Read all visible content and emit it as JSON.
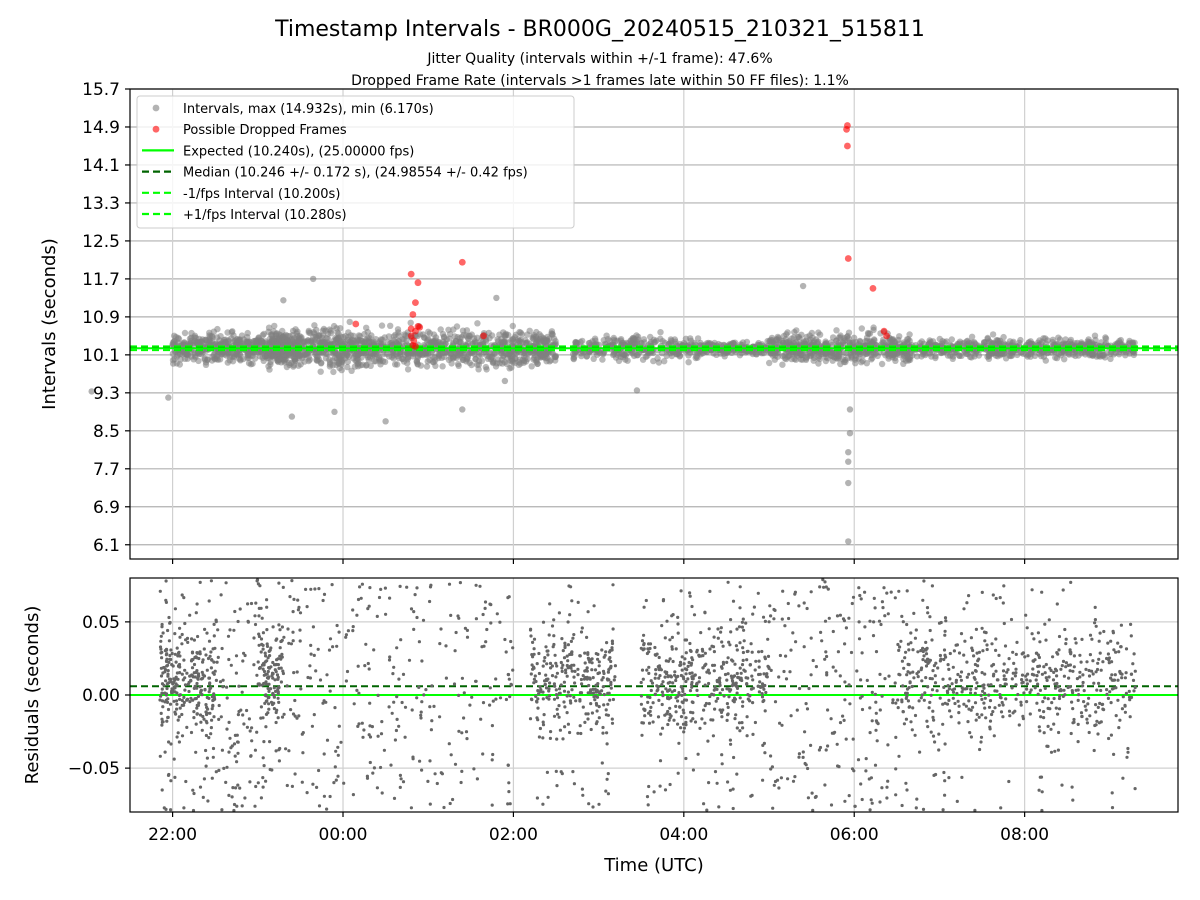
{
  "colors": {
    "intervals": "#808080",
    "dropped": "#ff0000",
    "expected": "#00ff00",
    "median": "#006400",
    "minus_fps": "#00ff00",
    "plus_fps": "#00ff00",
    "grid": "#b0b0b0",
    "residual_points": "#666666"
  },
  "chart_data": [
    {
      "type": "scatter",
      "title": "Timestamp Intervals - BR000G_20240515_210321_515811",
      "subtitle_lines": [
        "Jitter Quality (intervals within +/-1 frame): 47.6%",
        "Dropped Frame Rate (intervals >1 frames late within 50 FF files): 1.1%"
      ],
      "xlabel": "",
      "ylabel": "Intervals (seconds)",
      "x_unit": "hours since 00:00 UTC (negative = previous day)",
      "xlim": [
        -2.5,
        9.8
      ],
      "ylim": [
        5.8,
        15.7
      ],
      "y_ticks": [
        "15.7",
        "14.9",
        "14.1",
        "13.3",
        "12.5",
        "11.7",
        "10.9",
        "10.1",
        "9.3",
        "8.5",
        "7.7",
        "6.9",
        "6.1"
      ],
      "y_tick_values": [
        15.7,
        14.9,
        14.1,
        13.3,
        12.5,
        11.7,
        10.9,
        10.1,
        9.3,
        8.5,
        7.7,
        6.9,
        6.1
      ],
      "x_ticks": [
        "22:00",
        "00:00",
        "02:00",
        "04:00",
        "06:00",
        "08:00"
      ],
      "x_tick_values": [
        -2,
        0,
        2,
        4,
        6,
        8
      ],
      "grid": true,
      "legend_position": "top-left",
      "legend": [
        {
          "label": "Intervals, max (14.932s), min (6.170s)",
          "kind": "marker",
          "color": "#808080"
        },
        {
          "label": "Possible Dropped Frames",
          "kind": "marker",
          "color": "#ff0000"
        },
        {
          "label": "Expected (10.240s), (25.00000 fps)",
          "kind": "solid",
          "color": "#00ff00"
        },
        {
          "label": "Median (10.246 +/- 0.172 s), (24.98554 +/- 0.42 fps)",
          "kind": "dashed",
          "color": "#006400"
        },
        {
          "label": "-1/fps Interval (10.200s)",
          "kind": "dashed",
          "color": "#00ff00"
        },
        {
          "label": "+1/fps Interval (10.280s)",
          "kind": "dashed",
          "color": "#00ff00"
        }
      ],
      "reference_lines": {
        "expected": 10.24,
        "median": 10.246,
        "minus_fps": 10.2,
        "plus_fps": 10.28
      },
      "interval_stats": {
        "max": 14.932,
        "min": 6.17,
        "median": 10.246,
        "std": 0.172
      },
      "interval_clusters": [
        {
          "x_range": [
            -2.0,
            -0.5
          ],
          "center": 10.24,
          "spread": 0.28,
          "count": 500
        },
        {
          "x_range": [
            -0.9,
            2.5
          ],
          "center": 10.24,
          "spread": 0.35,
          "count": 1100
        },
        {
          "x_range": [
            2.7,
            4.2
          ],
          "center": 10.24,
          "spread": 0.22,
          "count": 300
        },
        {
          "x_range": [
            4.2,
            5.0
          ],
          "center": 10.24,
          "spread": 0.12,
          "count": 160
        },
        {
          "x_range": [
            5.0,
            6.7
          ],
          "center": 10.24,
          "spread": 0.28,
          "count": 500
        },
        {
          "x_range": [
            6.7,
            9.3
          ],
          "center": 10.24,
          "spread": 0.18,
          "count": 550
        }
      ],
      "interval_outliers": [
        {
          "x": -2.95,
          "y": 9.33
        },
        {
          "x": -2.05,
          "y": 9.2
        },
        {
          "x": -0.6,
          "y": 8.8
        },
        {
          "x": -0.1,
          "y": 8.9
        },
        {
          "x": 0.5,
          "y": 8.7
        },
        {
          "x": 1.4,
          "y": 8.95
        },
        {
          "x": -0.7,
          "y": 11.25
        },
        {
          "x": -0.35,
          "y": 11.7
        },
        {
          "x": 1.8,
          "y": 11.3
        },
        {
          "x": 5.4,
          "y": 11.55
        },
        {
          "x": 5.95,
          "y": 8.95
        },
        {
          "x": 5.95,
          "y": 8.45
        },
        {
          "x": 5.93,
          "y": 8.05
        },
        {
          "x": 5.93,
          "y": 7.85
        },
        {
          "x": 5.93,
          "y": 7.4
        },
        {
          "x": 5.93,
          "y": 6.17
        },
        {
          "x": 1.9,
          "y": 9.55
        },
        {
          "x": 3.45,
          "y": 9.35
        }
      ],
      "dropped_frames": [
        {
          "x": 0.15,
          "y": 10.75
        },
        {
          "x": 0.8,
          "y": 11.8
        },
        {
          "x": 0.88,
          "y": 11.62
        },
        {
          "x": 0.85,
          "y": 11.2
        },
        {
          "x": 0.82,
          "y": 10.95
        },
        {
          "x": 0.8,
          "y": 10.65
        },
        {
          "x": 0.85,
          "y": 10.6
        },
        {
          "x": 0.88,
          "y": 10.7
        },
        {
          "x": 0.9,
          "y": 10.68
        },
        {
          "x": 0.8,
          "y": 10.5
        },
        {
          "x": 0.83,
          "y": 10.4
        },
        {
          "x": 0.82,
          "y": 10.3
        },
        {
          "x": 0.85,
          "y": 10.28
        },
        {
          "x": 1.4,
          "y": 12.05
        },
        {
          "x": 1.65,
          "y": 10.5
        },
        {
          "x": 5.92,
          "y": 14.93
        },
        {
          "x": 5.91,
          "y": 14.85
        },
        {
          "x": 5.92,
          "y": 14.5
        },
        {
          "x": 5.93,
          "y": 12.13
        },
        {
          "x": 6.22,
          "y": 11.5
        },
        {
          "x": 6.35,
          "y": 10.6
        },
        {
          "x": 6.38,
          "y": 10.5
        }
      ]
    },
    {
      "type": "scatter",
      "xlabel": "Time (UTC)",
      "ylabel": "Residuals (seconds)",
      "xlim": [
        -2.5,
        9.8
      ],
      "ylim": [
        -0.08,
        0.08
      ],
      "y_ticks": [
        "0.05",
        "0.00",
        "−0.05"
      ],
      "y_tick_values": [
        0.05,
        0.0,
        -0.05
      ],
      "x_ticks": [
        "22:00",
        "00:00",
        "02:00",
        "04:00",
        "06:00",
        "08:00"
      ],
      "x_tick_values": [
        -2,
        0,
        2,
        4,
        6,
        8
      ],
      "grid": true,
      "reference_lines": {
        "expected_residual": 0.0,
        "median_residual": 0.006
      },
      "residual_clusters": [
        {
          "x_range": [
            -2.15,
            -1.5
          ],
          "dense": true,
          "count": 330
        },
        {
          "x_range": [
            -1.5,
            -0.9
          ],
          "dense": false,
          "count": 120
        },
        {
          "x_range": [
            -1.0,
            -0.7
          ],
          "dense": true,
          "count": 140
        },
        {
          "x_range": [
            -0.7,
            2.0
          ],
          "dense": false,
          "count": 330
        },
        {
          "x_range": [
            2.2,
            3.2
          ],
          "dense": true,
          "count": 320
        },
        {
          "x_range": [
            3.5,
            5.0
          ],
          "dense": true,
          "count": 480
        },
        {
          "x_range": [
            5.0,
            6.5
          ],
          "dense": false,
          "count": 220
        },
        {
          "x_range": [
            6.5,
            9.3
          ],
          "dense": true,
          "count": 650
        }
      ]
    }
  ]
}
